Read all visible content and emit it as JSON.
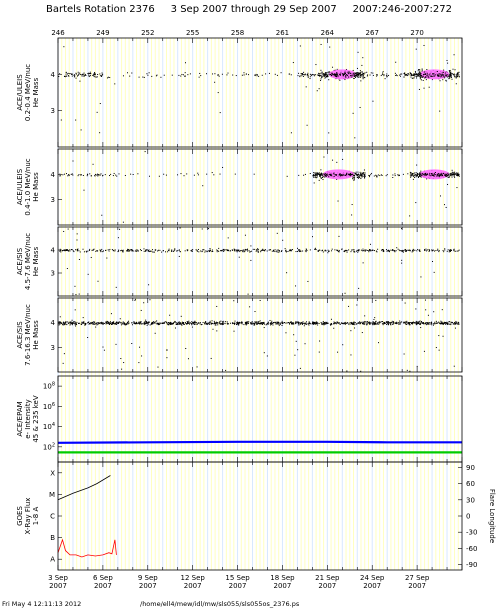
{
  "header": {
    "title": "Bartels Rotation 2376     3 Sep 2007 through 29 Sep 2007     2007:246-2007:272"
  },
  "footer": {
    "timestamp": "Fri May  4 12:11:13 2012",
    "path": "/home/ell4/mew/idl/mw/sls055/sls055os_2376.ps"
  },
  "colors": {
    "background_stripe_yellow": "#ffffc0",
    "background_stripe_blue": "#d8e8ff",
    "points": "#000000",
    "dense_core": "#ff66ff",
    "epam_high": "#0000ff",
    "epam_low": "#00cc00",
    "xray": "#ff0000",
    "flare_longitude": "#000000"
  },
  "chart_data": [
    {
      "type": "scatter",
      "panel": "top_axis",
      "x_tick_labels": [
        "246",
        "249",
        "252",
        "255",
        "258",
        "261",
        "264",
        "267",
        "270"
      ],
      "x_tick_values": [
        246,
        249,
        252,
        255,
        258,
        261,
        264,
        267,
        270
      ],
      "xlim": [
        246,
        273
      ]
    },
    {
      "type": "scatter",
      "panel": "uleis_02_04",
      "ylabel_lines": [
        "ACE/ULEIS",
        "0.2-0.4 MeV/nuc",
        "He Mass"
      ],
      "y_tick_labels": [
        "4",
        "3"
      ],
      "y_tick_values": [
        4,
        3
      ],
      "ylim": [
        2,
        5
      ],
      "clusters": [
        {
          "x_start": 246.0,
          "x_end": 249.0,
          "y": 4.0,
          "density": 0.6
        },
        {
          "x_start": 249.0,
          "x_end": 262.0,
          "y": 4.0,
          "density": 0.12
        },
        {
          "x_start": 262.0,
          "x_end": 263.5,
          "y": 4.0,
          "density": 0.7
        },
        {
          "x_start": 263.5,
          "x_end": 266.5,
          "y": 4.0,
          "density": 1.0,
          "core": true
        },
        {
          "x_start": 266.5,
          "x_end": 269.5,
          "y": 4.0,
          "density": 0.35
        },
        {
          "x_start": 269.5,
          "x_end": 272.8,
          "y": 4.0,
          "density": 1.0,
          "core": true
        }
      ]
    },
    {
      "type": "scatter",
      "panel": "uleis_04_10",
      "ylabel_lines": [
        "ACE/ULEIS",
        "0.4-1.0 MeV/nuc",
        "He Mass"
      ],
      "y_tick_labels": [
        "4",
        "3"
      ],
      "y_tick_values": [
        4,
        3
      ],
      "ylim": [
        2,
        5
      ],
      "clusters": [
        {
          "x_start": 246.0,
          "x_end": 249.0,
          "y": 4.0,
          "density": 0.3
        },
        {
          "x_start": 249.0,
          "x_end": 263.0,
          "y": 4.0,
          "density": 0.06
        },
        {
          "x_start": 263.0,
          "x_end": 266.5,
          "y": 4.0,
          "density": 1.0,
          "core": true
        },
        {
          "x_start": 266.5,
          "x_end": 269.5,
          "y": 4.0,
          "density": 0.2
        },
        {
          "x_start": 269.5,
          "x_end": 272.8,
          "y": 4.0,
          "density": 0.9,
          "core": true
        }
      ]
    },
    {
      "type": "scatter",
      "panel": "sis_45_76",
      "ylabel_lines": [
        "ACE/SIS",
        "4.5-7.6 MeV/nuc",
        "He Mass"
      ],
      "y_tick_labels": [
        "4",
        "3"
      ],
      "y_tick_values": [
        4,
        3
      ],
      "ylim": [
        2,
        5
      ],
      "clusters": [
        {
          "x_start": 246.0,
          "x_end": 272.8,
          "y": 4.0,
          "density": 0.45
        }
      ]
    },
    {
      "type": "scatter",
      "panel": "sis_76_163",
      "ylabel_lines": [
        "ACE/SIS",
        "7.6-16.3 MeV/nuc",
        "He Mass"
      ],
      "y_tick_labels": [
        "4",
        "3"
      ],
      "y_tick_values": [
        4,
        3
      ],
      "ylim": [
        2,
        5
      ],
      "clusters": [
        {
          "x_start": 246.0,
          "x_end": 272.8,
          "y": 4.0,
          "density": 1.0
        }
      ]
    },
    {
      "type": "line",
      "panel": "epam",
      "ylabel_lines": [
        "ACE/EPAM",
        "e- Intensity",
        "45 & 235 keV"
      ],
      "y_tick_labels": [
        "10^8",
        "10^6",
        "10^4",
        "10^2"
      ],
      "y_tick_values": [
        8,
        6,
        4,
        2
      ],
      "ylim": [
        0.5,
        9
      ],
      "log_scale": true,
      "series": [
        {
          "name": "45 keV",
          "color": "#0000ff",
          "points": [
            [
              246,
              2.4
            ],
            [
              252,
              2.45
            ],
            [
              258,
              2.5
            ],
            [
              264,
              2.5
            ],
            [
              268,
              2.45
            ],
            [
              273,
              2.45
            ]
          ]
        },
        {
          "name": "235 keV",
          "color": "#00cc00",
          "points": [
            [
              246,
              1.45
            ],
            [
              252,
              1.45
            ],
            [
              258,
              1.45
            ],
            [
              264,
              1.45
            ],
            [
              268,
              1.45
            ],
            [
              273,
              1.45
            ]
          ]
        }
      ]
    },
    {
      "type": "line",
      "panel": "goes",
      "ylabel_lines": [
        "GOES",
        "X-Ray Flux",
        "1-8 A"
      ],
      "y_tick_labels": [
        "X",
        "M",
        "C",
        "B",
        "A"
      ],
      "y_tick_values": [
        5,
        4,
        3,
        2,
        1
      ],
      "ylim": [
        0.5,
        5.5
      ],
      "right_ylabel": "Flare Longitude",
      "right_tick_labels": [
        "90",
        "60",
        "30",
        "0",
        "-30",
        "-60",
        "-90"
      ],
      "right_tick_values": [
        90,
        60,
        30,
        0,
        -30,
        -60,
        -90
      ],
      "right_ylim": [
        -100,
        100
      ],
      "x_tick_labels": [
        "3 Sep",
        "6 Sep",
        "9 Sep",
        "12 Sep",
        "15 Sep",
        "18 Sep",
        "21 Sep",
        "24 Sep",
        "27 Sep"
      ],
      "x_tick_values": [
        246,
        249,
        252,
        255,
        258,
        261,
        264,
        267,
        270
      ],
      "x_year_label": "2007",
      "xray_points": [
        [
          246.0,
          1.3
        ],
        [
          246.3,
          1.9
        ],
        [
          246.5,
          1.4
        ],
        [
          246.8,
          1.2
        ],
        [
          247.2,
          1.2
        ],
        [
          247.6,
          1.1
        ],
        [
          248.0,
          1.2
        ],
        [
          248.5,
          1.15
        ],
        [
          249.0,
          1.2
        ],
        [
          249.4,
          1.3
        ],
        [
          249.6,
          1.25
        ],
        [
          249.8,
          1.9
        ],
        [
          249.9,
          1.2
        ]
      ],
      "flare_longitude_points": [
        [
          246.0,
          30
        ],
        [
          247.0,
          42
        ],
        [
          248.0,
          52
        ],
        [
          248.6,
          60
        ],
        [
          249.5,
          75
        ]
      ]
    }
  ]
}
